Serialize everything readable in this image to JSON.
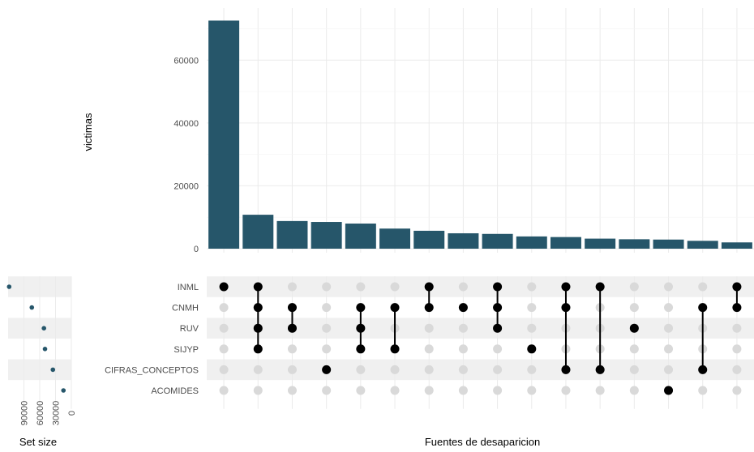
{
  "chart_data": {
    "type": "bar",
    "title": "",
    "xlabel": "Fuentes de desaparicion",
    "ylabel": "victimas",
    "ylim": [
      0,
      74000
    ],
    "yticks": [
      0,
      20000,
      40000,
      60000
    ],
    "bar_color": "#26566a",
    "dot_active_color": "#000000",
    "dot_inactive_color": "#d9d9d9",
    "grid": true,
    "sets": [
      "INML",
      "CNMH",
      "RUV",
      "SIJYP",
      "CIFRAS_CONCEPTOS",
      "ACOMIDES"
    ],
    "set_sizes": {
      "xlabel": "Set size",
      "values": [
        118000,
        75000,
        52000,
        50000,
        35000,
        15000
      ],
      "xticks": [
        90000,
        60000,
        30000,
        0
      ],
      "xlim": [
        0,
        120000
      ]
    },
    "intersections": [
      {
        "sets": [
          "INML"
        ],
        "value": 72600
      },
      {
        "sets": [
          "INML",
          "CNMH",
          "RUV",
          "SIJYP"
        ],
        "value": 10800
      },
      {
        "sets": [
          "CNMH",
          "RUV"
        ],
        "value": 8800
      },
      {
        "sets": [
          "CIFRAS_CONCEPTOS"
        ],
        "value": 8500
      },
      {
        "sets": [
          "CNMH",
          "RUV",
          "SIJYP"
        ],
        "value": 8000
      },
      {
        "sets": [
          "CNMH",
          "SIJYP"
        ],
        "value": 6400
      },
      {
        "sets": [
          "INML",
          "CNMH"
        ],
        "value": 5700
      },
      {
        "sets": [
          "CNMH"
        ],
        "value": 4900
      },
      {
        "sets": [
          "INML",
          "CNMH",
          "RUV"
        ],
        "value": 4700
      },
      {
        "sets": [
          "SIJYP"
        ],
        "value": 3900
      },
      {
        "sets": [
          "INML",
          "CNMH",
          "CIFRAS_CONCEPTOS"
        ],
        "value": 3700
      },
      {
        "sets": [
          "INML",
          "CIFRAS_CONCEPTOS"
        ],
        "value": 3200
      },
      {
        "sets": [
          "RUV"
        ],
        "value": 3000
      },
      {
        "sets": [
          "ACOMIDES"
        ],
        "value": 2900
      },
      {
        "sets": [
          "CNMH",
          "CIFRAS_CONCEPTOS"
        ],
        "value": 2500
      },
      {
        "sets": [
          "INML",
          "CNMH"
        ],
        "value": 2000
      }
    ]
  }
}
